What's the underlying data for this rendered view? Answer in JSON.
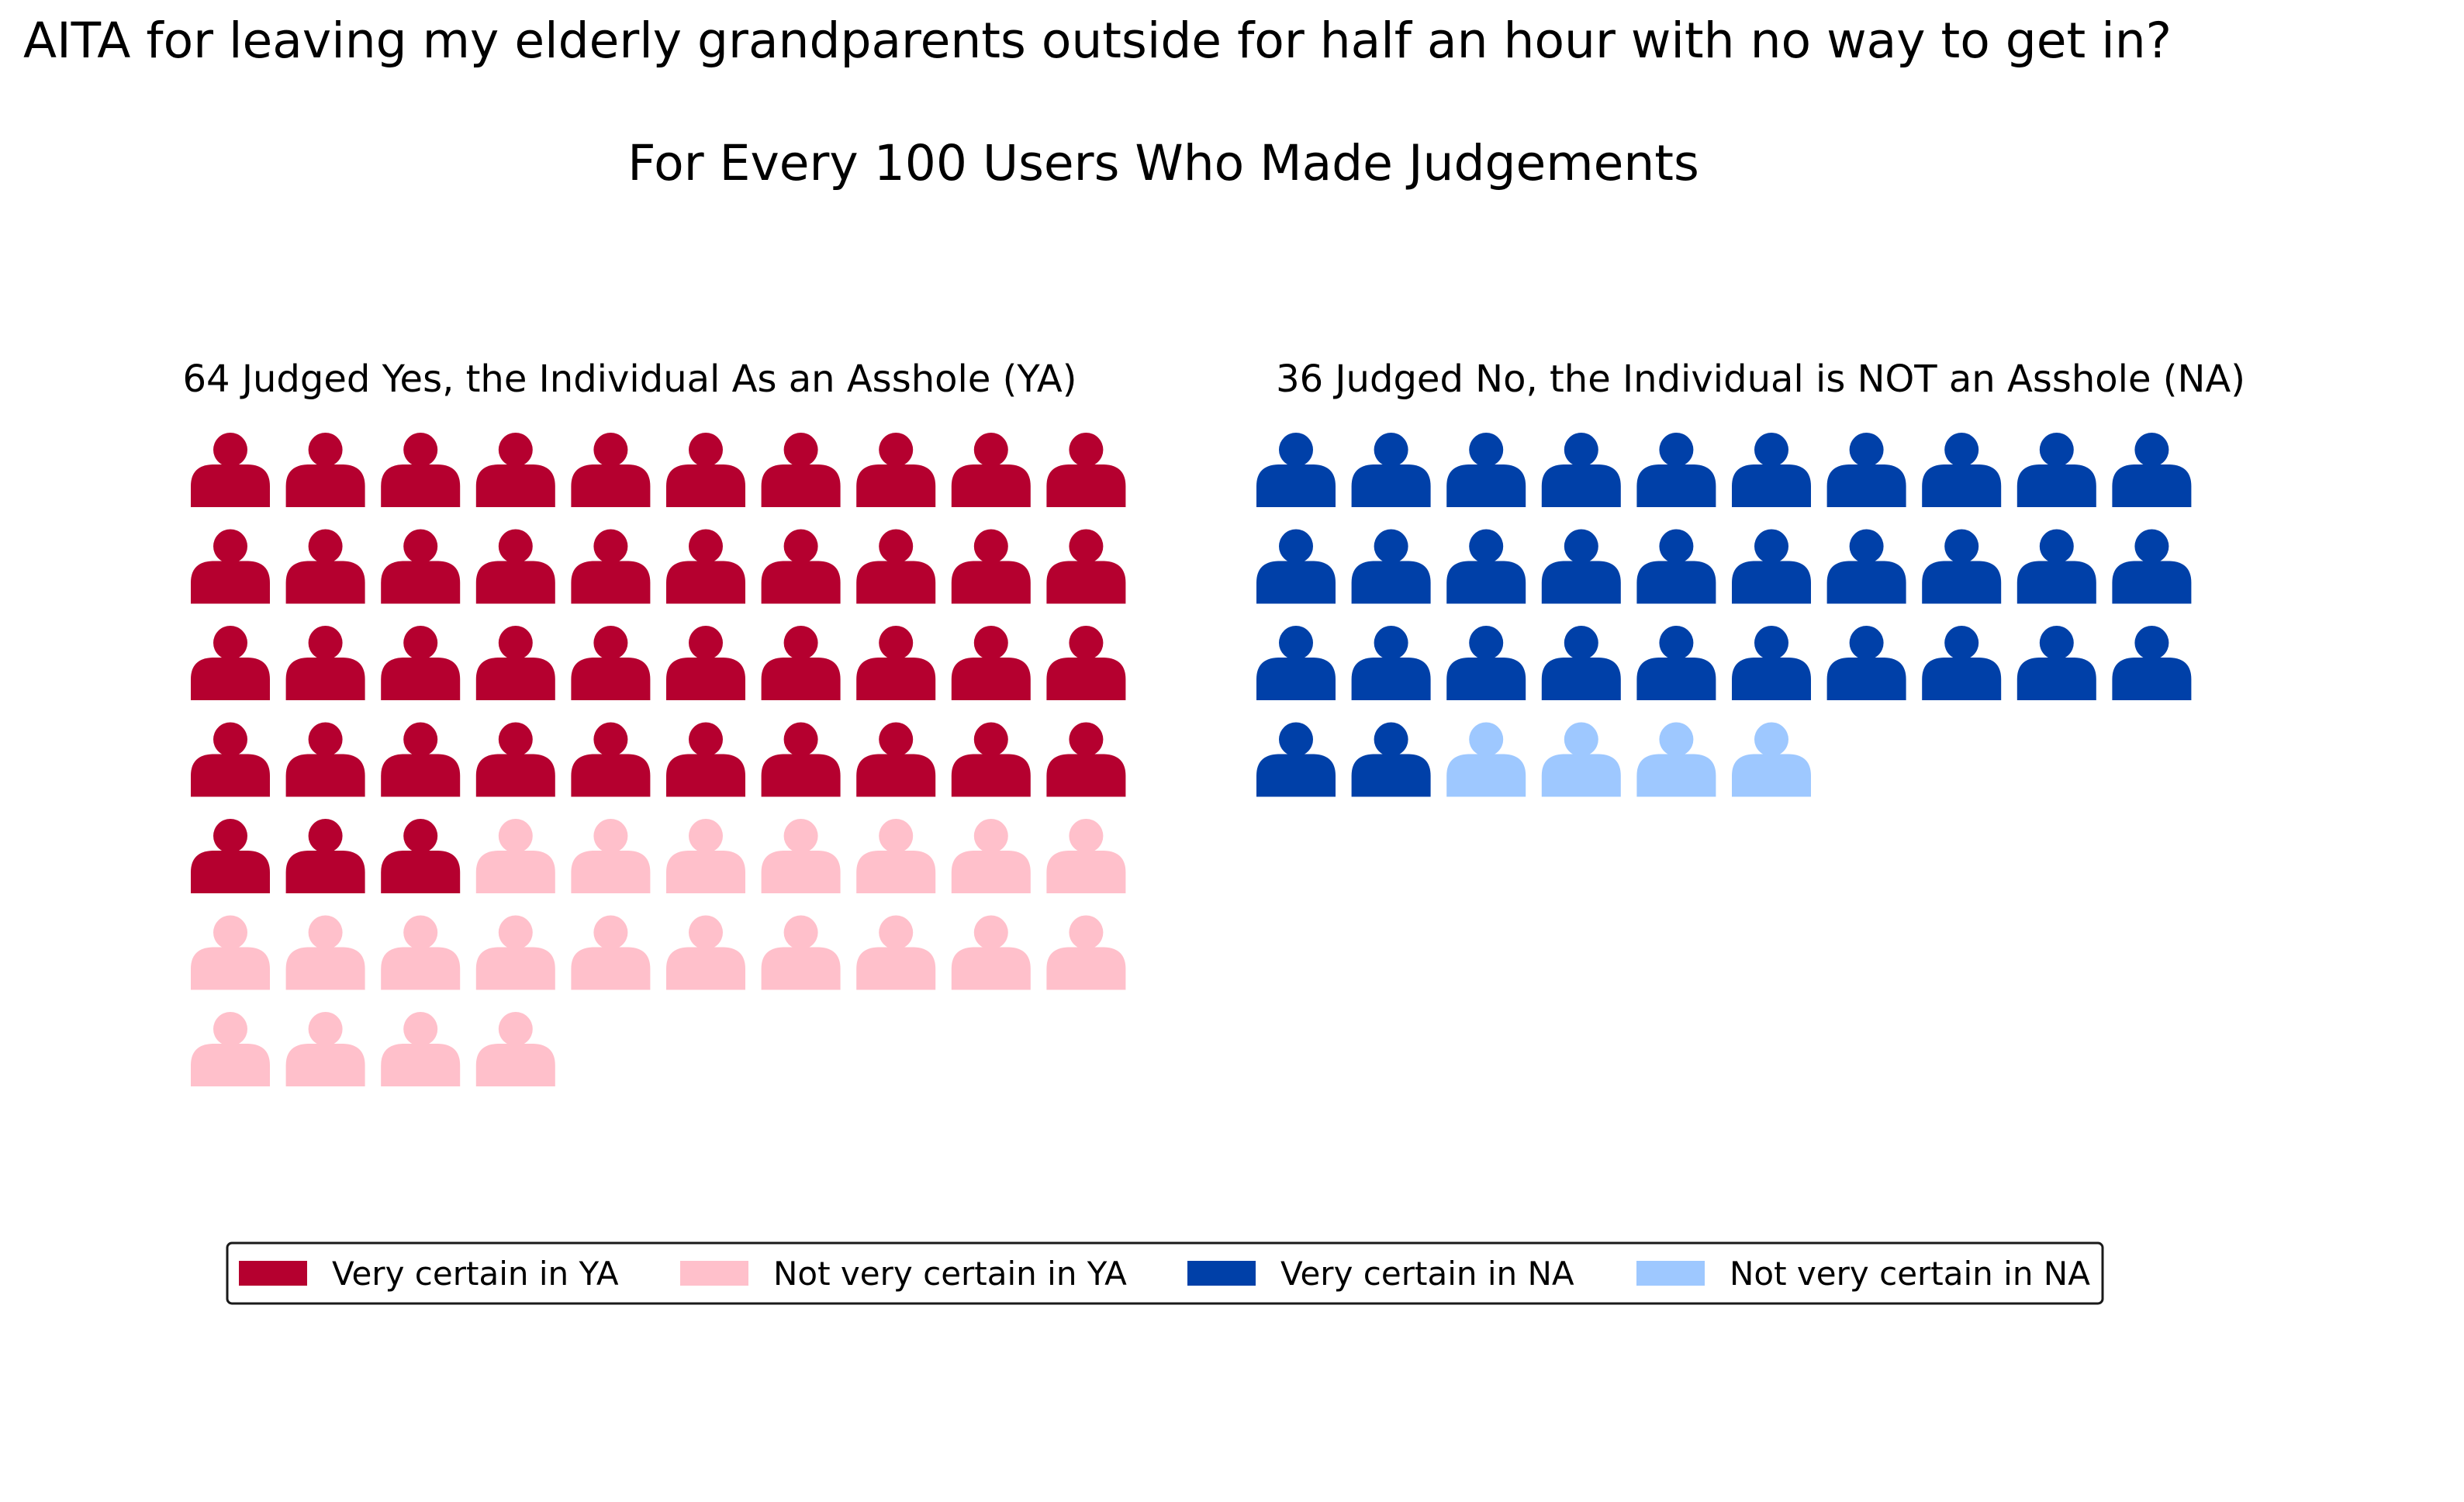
{
  "chart_data": {
    "type": "waffle",
    "title": "AITA for leaving my elderly grandparents outside for half an hour with no way to get in?",
    "subtitle": "For Every 100 Users Who Made Judgements",
    "icon": "person-icon",
    "columns_per_row": 10,
    "panels": [
      {
        "id": "ya",
        "label": "64 Judged Yes, the Individual As an Asshole (YA)",
        "total": 64,
        "segments": [
          {
            "name": "Very certain in YA",
            "count": 43,
            "color": "#b5002f"
          },
          {
            "name": "Not very certain in YA",
            "count": 21,
            "color": "#ffc0cb"
          }
        ]
      },
      {
        "id": "na",
        "label": "36 Judged No, the Individual is NOT an Asshole (NA)",
        "total": 36,
        "segments": [
          {
            "name": "Very certain in NA",
            "count": 32,
            "color": "#0040a8"
          },
          {
            "name": "Not very certain in NA",
            "count": 4,
            "color": "#9ec8ff"
          }
        ]
      }
    ],
    "legend": {
      "placement": "bottom-center",
      "entries": [
        {
          "label": "Very certain in YA",
          "color": "#b5002f"
        },
        {
          "label": "Not very certain in YA",
          "color": "#ffc0cb"
        },
        {
          "label": "Very certain in NA",
          "color": "#0040a8"
        },
        {
          "label": "Not very certain in NA",
          "color": "#9ec8ff"
        }
      ]
    }
  }
}
